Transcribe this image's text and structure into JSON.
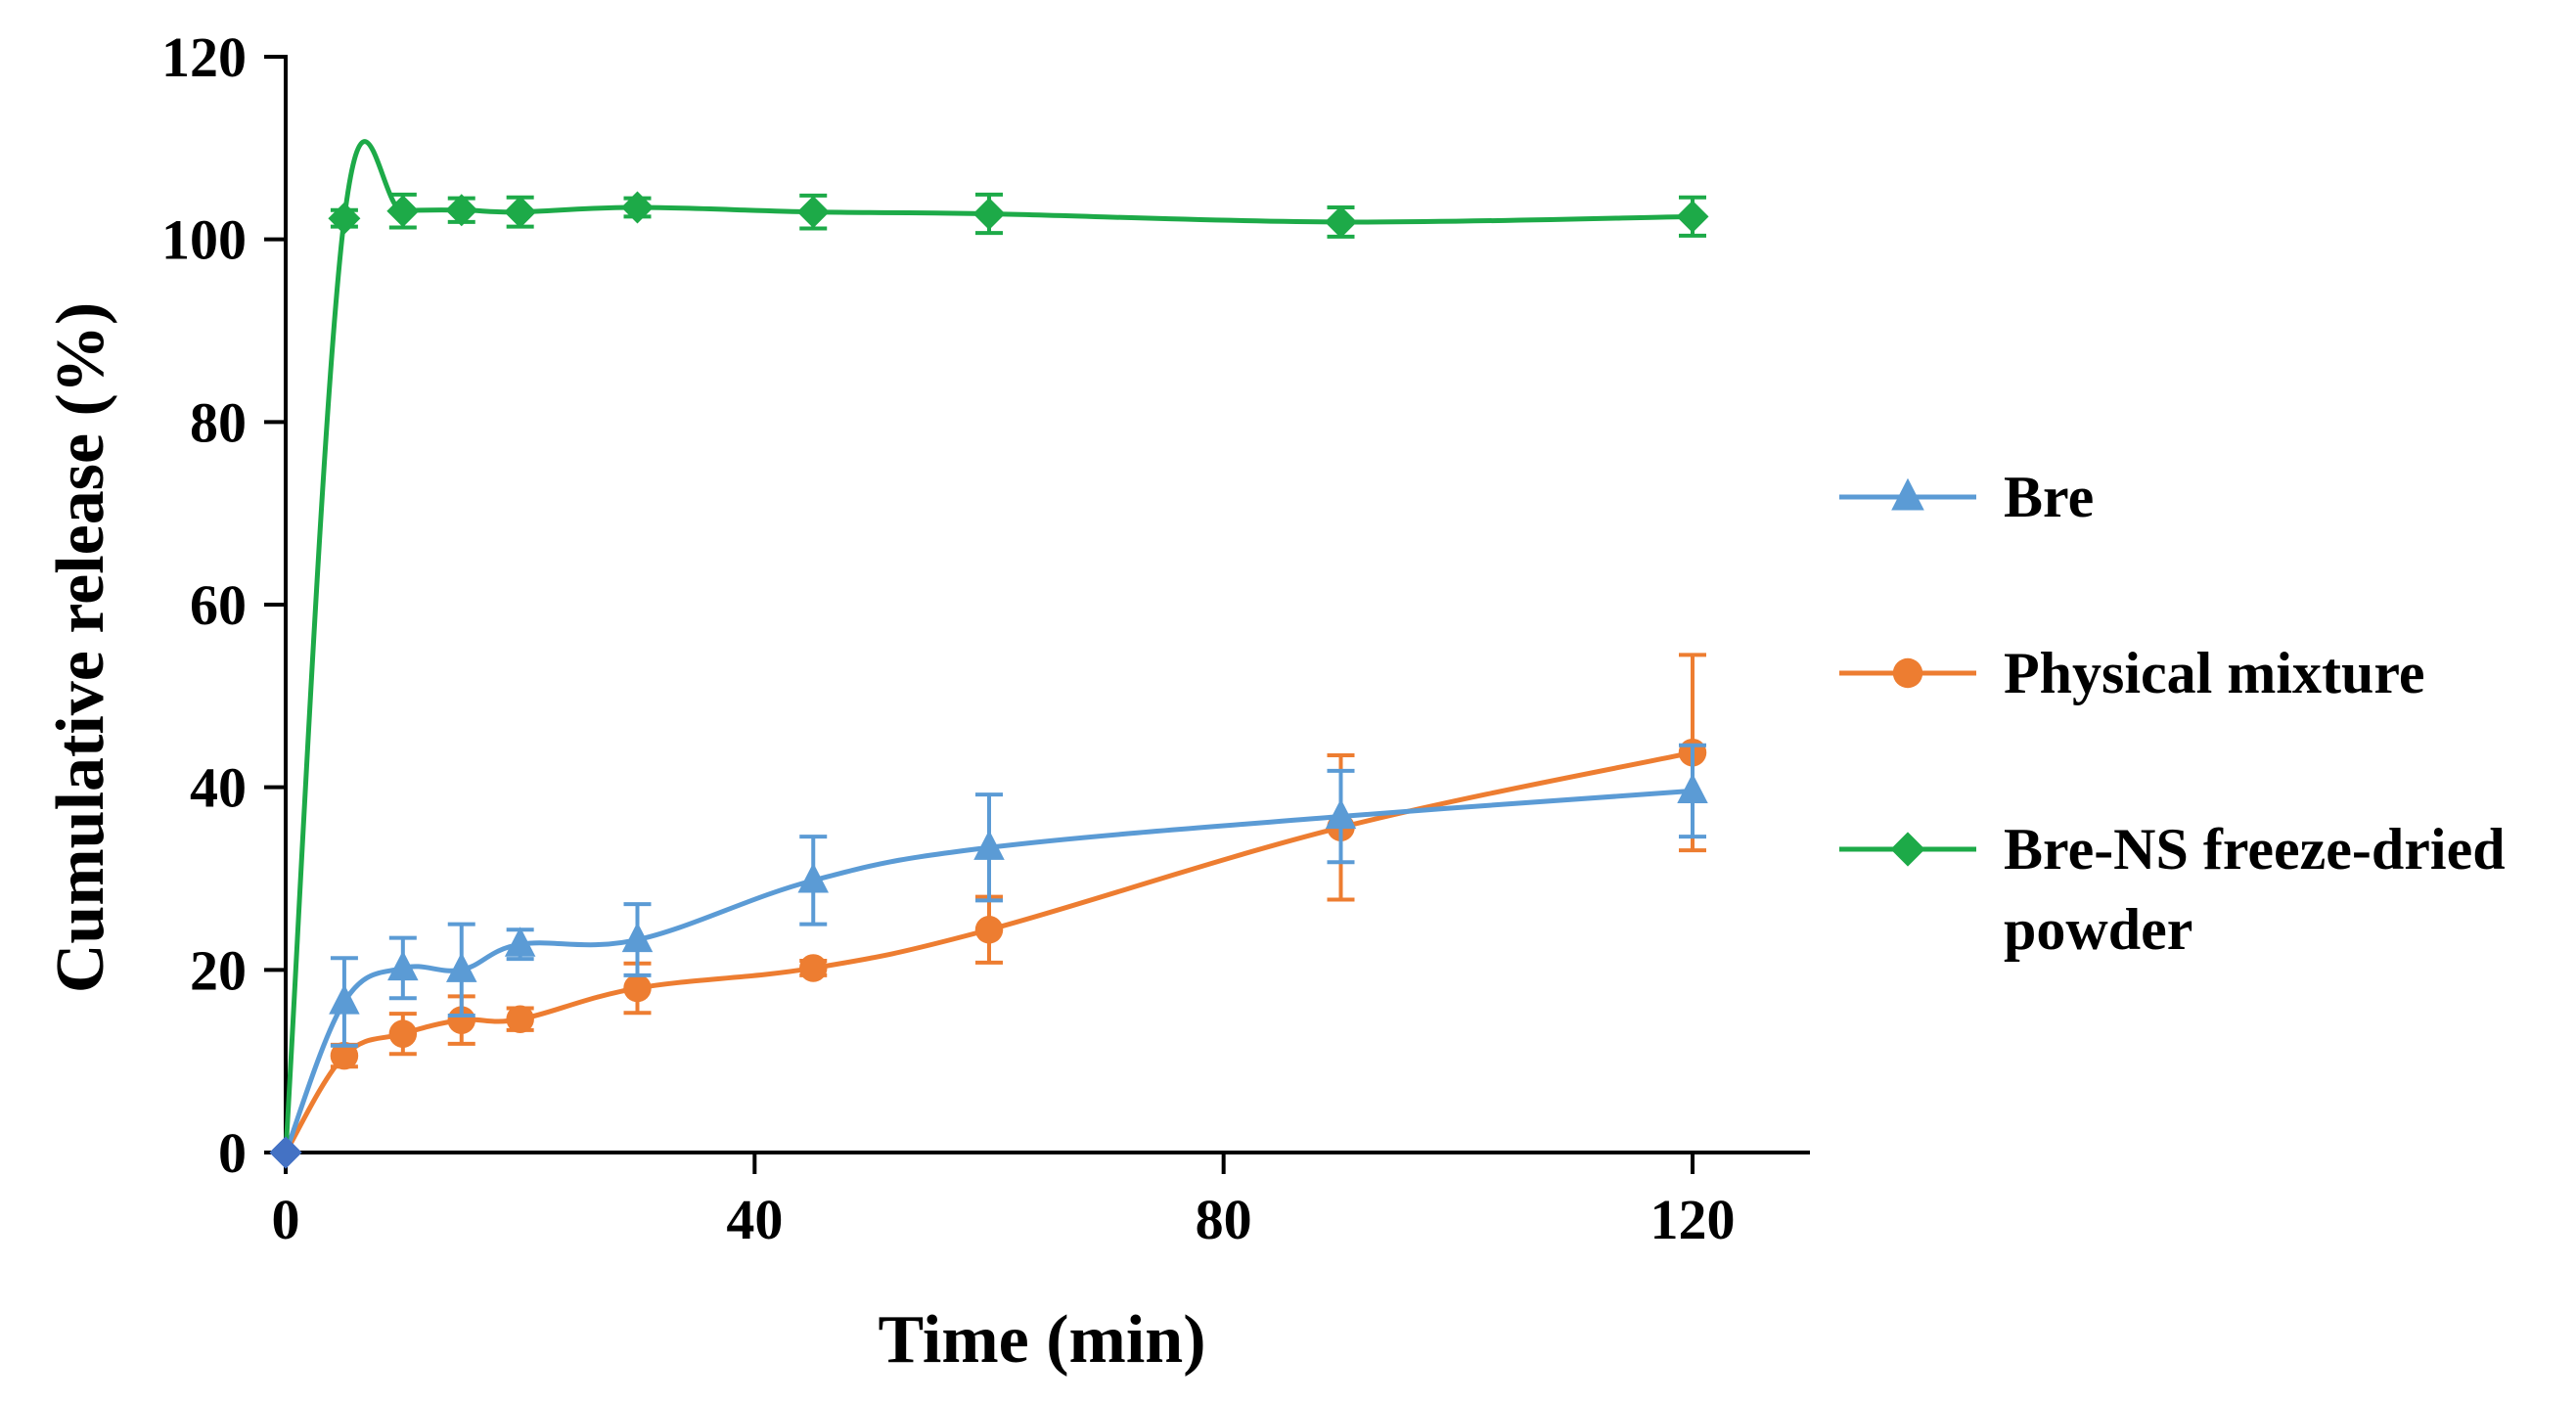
{
  "chart_data": {
    "type": "line",
    "title": "",
    "xlabel": "Time (min)",
    "ylabel": "Cumulative release (%)",
    "xlim": [
      0,
      130
    ],
    "ylim": [
      0,
      120
    ],
    "xticks": [
      0,
      40,
      80,
      120
    ],
    "yticks": [
      0,
      20,
      40,
      60,
      80,
      100,
      120
    ],
    "grid": false,
    "legend_position": "right",
    "x": [
      0,
      5,
      10,
      15,
      20,
      30,
      45,
      60,
      90,
      120
    ],
    "series": [
      {
        "name": "Bre",
        "marker": "triangle",
        "color": "#5B9BD5",
        "values": [
          0,
          16.5,
          20.2,
          20.0,
          22.8,
          23.3,
          29.8,
          33.4,
          36.8,
          39.6
        ],
        "errors": [
          0,
          4.8,
          3.3,
          5.0,
          1.6,
          3.9,
          4.8,
          5.8,
          5.0,
          5.0
        ]
      },
      {
        "name": "Physical mixture",
        "marker": "circle",
        "color": "#ED7D31",
        "values": [
          0,
          10.6,
          13.0,
          14.5,
          14.6,
          18.0,
          20.2,
          24.4,
          35.6,
          43.8
        ],
        "errors": [
          0,
          1.2,
          2.2,
          2.6,
          1.2,
          2.7,
          0.8,
          3.6,
          7.9,
          10.7
        ]
      },
      {
        "name": "Bre-NS freeze-dried powder",
        "marker": "diamond",
        "color": "#1DAA48",
        "values": [
          0,
          102.3,
          103.1,
          103.2,
          103.0,
          103.5,
          103.0,
          102.8,
          101.9,
          102.5
        ],
        "errors": [
          0,
          0.9,
          1.8,
          1.3,
          1.6,
          1.0,
          1.8,
          2.1,
          1.6,
          2.1
        ]
      }
    ]
  }
}
